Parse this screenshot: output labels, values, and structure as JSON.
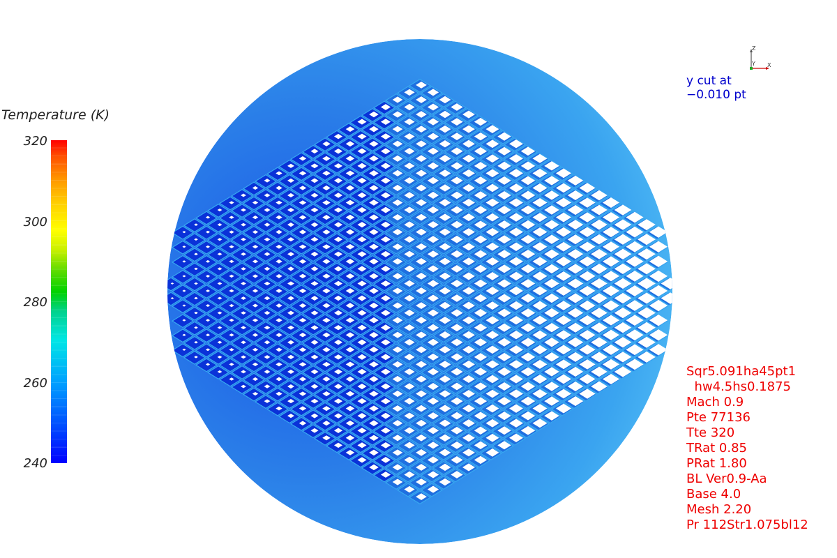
{
  "legend": {
    "title": "Temperature (K)",
    "ticks": [
      "320",
      "300",
      "280",
      "260",
      "240"
    ]
  },
  "axes": {
    "z": "Z",
    "y": "Y",
    "x": "X"
  },
  "cut": {
    "line1": "y cut at",
    "line2": "−0.010 pt"
  },
  "params": [
    "Sqr5.091ha45pt1",
    "  hw4.5hs0.1875",
    "Mach 0.9",
    "Pte 77136",
    "Tte 320",
    "TRat 0.85",
    "PRat 1.80",
    "BL Ver0.9-Aa",
    "Base 4.0",
    "Mesh 2.20",
    "Pr 112Str1.075bl12"
  ],
  "colors": {
    "mesh_fill": "#1f6fe0",
    "mesh_dark": "#0a32d8",
    "mesh_light": "#37a8f0",
    "hole": "#ffffff",
    "params_text": "#ee0000",
    "cut_text": "#0000cc"
  }
}
